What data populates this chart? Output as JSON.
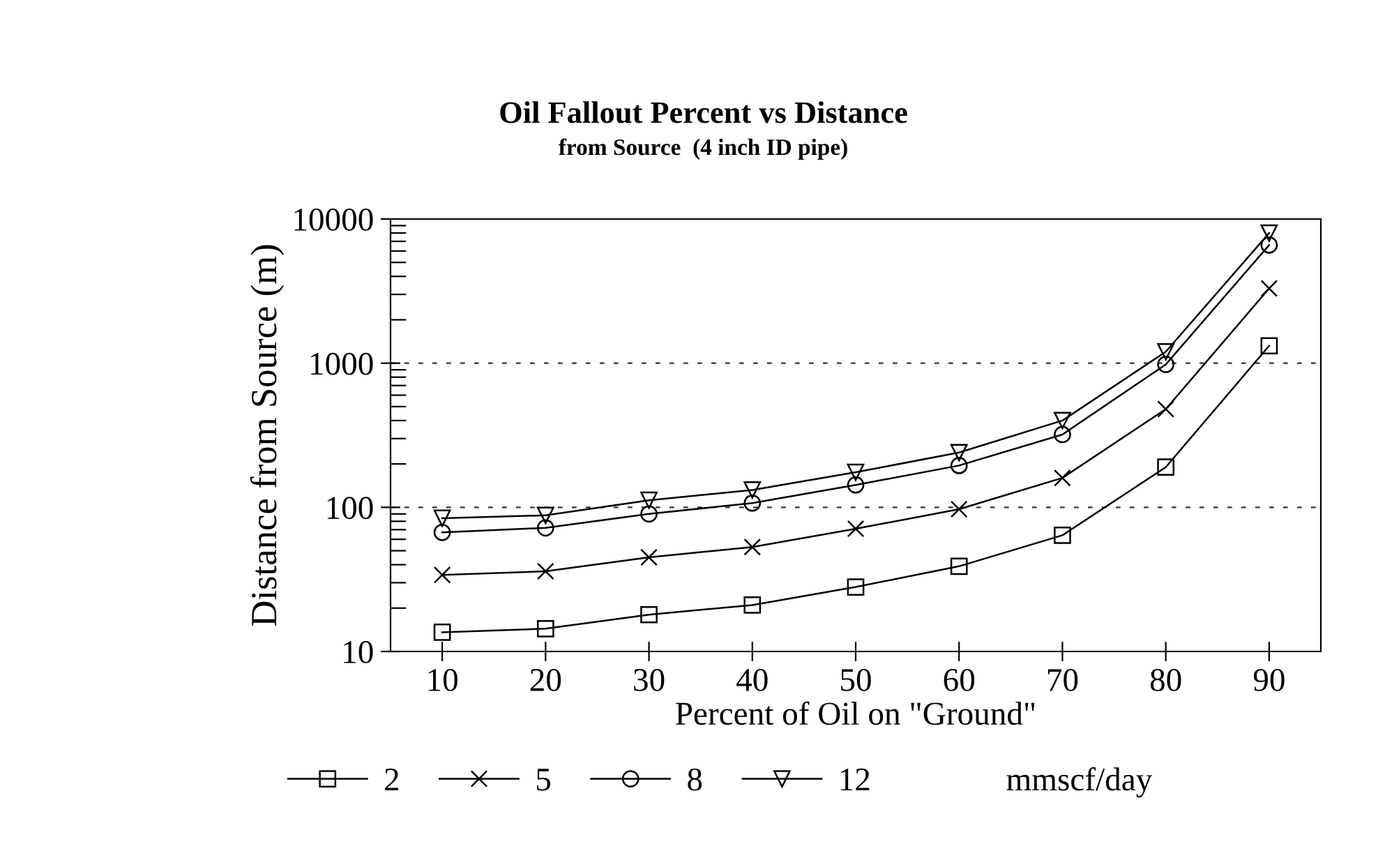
{
  "chart_data": {
    "type": "line",
    "title": "Oil Fallout Percent vs Distance",
    "subtitle": "from Source  (4 inch ID pipe)",
    "xlabel": "Percent of Oil on \"Ground\"",
    "ylabel": "Distance from Source (m)",
    "legend_title": "mmscf/day",
    "x": [
      10,
      20,
      30,
      40,
      50,
      60,
      70,
      80,
      90
    ],
    "series": [
      {
        "name": "2",
        "color": "#000000",
        "marker": "square",
        "values": [
          13.6,
          14.4,
          18,
          21,
          28,
          39,
          64,
          190,
          1320
        ]
      },
      {
        "name": "5",
        "color": "#000000",
        "marker": "cross",
        "values": [
          34,
          36,
          45,
          53,
          71,
          97,
          160,
          480,
          3300
        ]
      },
      {
        "name": "8",
        "color": "#000000",
        "marker": "circle",
        "values": [
          67,
          72,
          90,
          107,
          143,
          195,
          320,
          980,
          6600
        ]
      },
      {
        "name": "12",
        "color": "#000000",
        "marker": "triangle",
        "values": [
          84,
          88,
          112,
          132,
          175,
          240,
          400,
          1200,
          8000
        ]
      }
    ],
    "log": "y",
    "xlim": [
      5,
      95
    ],
    "ylim": [
      10,
      10000
    ],
    "xticks": [
      10,
      20,
      30,
      40,
      50,
      60,
      70,
      80,
      90
    ],
    "yticks": [
      10,
      100,
      1000,
      10000
    ],
    "grid": "y",
    "legend": "bottom",
    "line_style": "solid"
  }
}
